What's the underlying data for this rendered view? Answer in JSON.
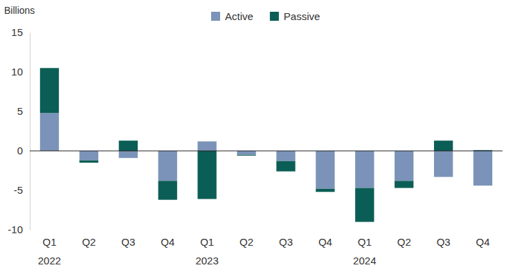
{
  "chart_data": {
    "type": "bar",
    "stacked": true,
    "y_label": "Billions",
    "categories": [
      "Q1 2022",
      "Q2",
      "Q3",
      "Q4",
      "Q1 2023",
      "Q2",
      "Q3",
      "Q4",
      "Q1 2024",
      "Q2",
      "Q3",
      "Q4"
    ],
    "series": [
      {
        "name": "Active",
        "color": "#7b93b8",
        "values": [
          4.8,
          -1.2,
          -0.9,
          -3.8,
          1.2,
          -0.5,
          -1.3,
          -4.8,
          -4.7,
          -3.8,
          -3.3,
          -4.4
        ]
      },
      {
        "name": "Passive",
        "color": "#0b5e55",
        "values": [
          5.7,
          -0.3,
          1.3,
          -2.4,
          -6.1,
          -0.1,
          -1.3,
          -0.4,
          -4.3,
          -0.9,
          1.3,
          0.1
        ]
      }
    ],
    "ylim": [
      -10,
      15
    ],
    "yticks": [
      -10,
      -5,
      0,
      5,
      10,
      15
    ],
    "grid": false,
    "legend": "top"
  }
}
